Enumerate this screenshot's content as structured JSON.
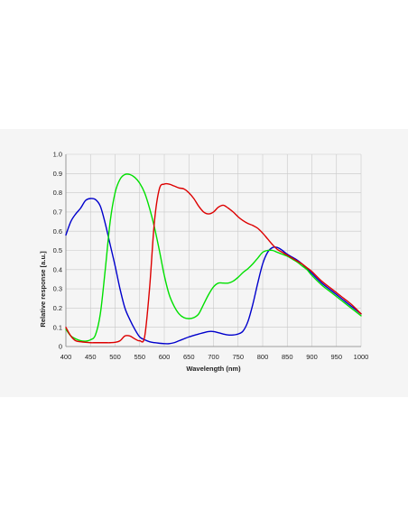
{
  "chart_data": {
    "type": "line",
    "title": "",
    "xlabel": "Wavelength (nm)",
    "ylabel": "Relative response [a.u.]",
    "xlim": [
      400,
      1000
    ],
    "ylim": [
      0,
      1.0
    ],
    "x_ticks": [
      "400",
      "450",
      "500",
      "550",
      "600",
      "650",
      "700",
      "750",
      "800",
      "850",
      "900",
      "950",
      "1000"
    ],
    "y_ticks": [
      "0",
      "0.1",
      "0.2",
      "0.3",
      "0.4",
      "0.5",
      "0.6",
      "0.7",
      "0.8",
      "0.9",
      "1.0"
    ],
    "grid": true,
    "legend": "none",
    "series": [
      {
        "color": "#0000cc",
        "x": [
          400,
          410,
          420,
          430,
          440,
          450,
          460,
          470,
          480,
          490,
          500,
          510,
          520,
          530,
          540,
          550,
          560,
          570,
          580,
          590,
          600,
          610,
          620,
          630,
          640,
          650,
          660,
          670,
          680,
          690,
          700,
          710,
          720,
          730,
          740,
          750,
          760,
          770,
          780,
          790,
          800,
          810,
          820,
          830,
          840,
          850,
          860,
          870,
          880,
          890,
          900,
          920,
          940,
          960,
          980,
          1000
        ],
        "y": [
          0.58,
          0.65,
          0.69,
          0.72,
          0.76,
          0.77,
          0.765,
          0.73,
          0.64,
          0.53,
          0.42,
          0.3,
          0.2,
          0.14,
          0.09,
          0.05,
          0.035,
          0.025,
          0.02,
          0.017,
          0.015,
          0.015,
          0.02,
          0.03,
          0.04,
          0.05,
          0.058,
          0.065,
          0.072,
          0.078,
          0.078,
          0.072,
          0.065,
          0.06,
          0.06,
          0.065,
          0.08,
          0.13,
          0.22,
          0.33,
          0.43,
          0.49,
          0.515,
          0.515,
          0.5,
          0.48,
          0.465,
          0.45,
          0.43,
          0.405,
          0.38,
          0.33,
          0.29,
          0.25,
          0.21,
          0.17
        ]
      },
      {
        "color": "#00e000",
        "x": [
          400,
          410,
          420,
          430,
          440,
          450,
          460,
          470,
          480,
          490,
          500,
          510,
          520,
          530,
          540,
          550,
          560,
          570,
          580,
          590,
          600,
          610,
          620,
          630,
          640,
          650,
          660,
          670,
          680,
          690,
          700,
          710,
          720,
          730,
          740,
          750,
          760,
          770,
          780,
          790,
          800,
          810,
          820,
          830,
          840,
          850,
          860,
          870,
          880,
          890,
          900,
          920,
          940,
          960,
          980,
          1000
        ],
        "y": [
          0.09,
          0.055,
          0.04,
          0.03,
          0.028,
          0.035,
          0.06,
          0.17,
          0.4,
          0.65,
          0.8,
          0.87,
          0.895,
          0.895,
          0.88,
          0.85,
          0.8,
          0.72,
          0.62,
          0.5,
          0.37,
          0.27,
          0.21,
          0.17,
          0.15,
          0.145,
          0.15,
          0.17,
          0.22,
          0.27,
          0.31,
          0.33,
          0.33,
          0.33,
          0.34,
          0.36,
          0.385,
          0.405,
          0.43,
          0.46,
          0.49,
          0.5,
          0.5,
          0.49,
          0.48,
          0.47,
          0.455,
          0.44,
          0.42,
          0.4,
          0.37,
          0.32,
          0.28,
          0.24,
          0.2,
          0.16
        ]
      },
      {
        "color": "#dd0000",
        "x": [
          400,
          410,
          420,
          430,
          440,
          450,
          460,
          470,
          480,
          490,
          500,
          510,
          520,
          530,
          540,
          550,
          560,
          570,
          580,
          590,
          600,
          610,
          620,
          630,
          640,
          650,
          660,
          670,
          680,
          690,
          700,
          710,
          720,
          730,
          740,
          750,
          760,
          770,
          780,
          790,
          800,
          810,
          820,
          830,
          840,
          850,
          860,
          870,
          880,
          890,
          900,
          920,
          940,
          960,
          980,
          1000
        ],
        "y": [
          0.1,
          0.055,
          0.03,
          0.025,
          0.022,
          0.02,
          0.02,
          0.02,
          0.02,
          0.02,
          0.022,
          0.03,
          0.055,
          0.055,
          0.04,
          0.03,
          0.05,
          0.3,
          0.65,
          0.82,
          0.845,
          0.845,
          0.835,
          0.825,
          0.82,
          0.8,
          0.77,
          0.73,
          0.7,
          0.69,
          0.7,
          0.725,
          0.735,
          0.72,
          0.7,
          0.675,
          0.655,
          0.64,
          0.63,
          0.615,
          0.59,
          0.56,
          0.53,
          0.505,
          0.49,
          0.475,
          0.46,
          0.445,
          0.43,
          0.41,
          0.39,
          0.34,
          0.3,
          0.26,
          0.22,
          0.17
        ]
      }
    ]
  }
}
